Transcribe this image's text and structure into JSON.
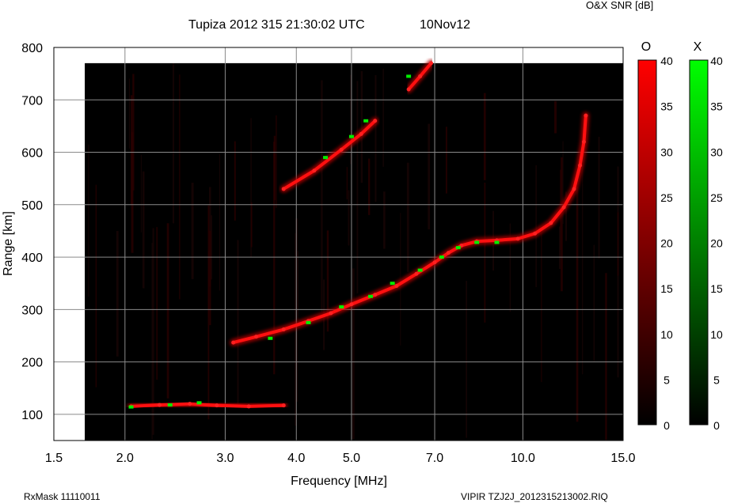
{
  "header": {
    "title": "Tupiza 2012 315 21:30:02 UTC",
    "date": "10Nov12",
    "snr_label": "O&X SNR [dB]"
  },
  "footer": {
    "left": "RxMask 11110011",
    "right": "VIPIR  TZJ2J_2012315213002.RIQ"
  },
  "colors": {
    "background": "#000000",
    "o_trace": "#ff0000",
    "x_trace": "#00ff00",
    "grid": "#808080"
  },
  "chart_data": {
    "type": "scatter",
    "xlabel": "Frequency [MHz]",
    "ylabel": "Range [km]",
    "xscale": "log",
    "xlim": [
      1.5,
      15.0
    ],
    "ylim": [
      50,
      800
    ],
    "x_ticks": [
      "1.5",
      "2.0",
      "3.0",
      "4.0",
      "5.0",
      "7.0",
      "10.0",
      "15.0"
    ],
    "x_tick_values": [
      1.5,
      2.0,
      3.0,
      4.0,
      5.0,
      7.0,
      10.0,
      15.0
    ],
    "y_ticks": [
      "100",
      "200",
      "300",
      "400",
      "500",
      "600",
      "700",
      "800"
    ],
    "y_tick_values": [
      100,
      200,
      300,
      400,
      500,
      600,
      700,
      800
    ],
    "grid": true,
    "frequency_start_mhz": 1.7,
    "range_top_km": 770,
    "series": [
      {
        "name": "O",
        "points": [
          [
            2.05,
            115
          ],
          [
            2.3,
            118
          ],
          [
            2.6,
            120
          ],
          [
            2.9,
            117
          ],
          [
            3.3,
            115
          ],
          [
            3.8,
            117
          ],
          [
            3.1,
            237
          ],
          [
            3.4,
            248
          ],
          [
            3.8,
            262
          ],
          [
            4.2,
            278
          ],
          [
            4.6,
            293
          ],
          [
            5.0,
            310
          ],
          [
            5.5,
            328
          ],
          [
            6.0,
            345
          ],
          [
            6.5,
            368
          ],
          [
            7.0,
            390
          ],
          [
            7.4,
            408
          ],
          [
            7.8,
            422
          ],
          [
            8.3,
            430
          ],
          [
            9.0,
            432
          ],
          [
            9.8,
            435
          ],
          [
            10.5,
            445
          ],
          [
            11.2,
            465
          ],
          [
            11.8,
            495
          ],
          [
            12.3,
            530
          ],
          [
            12.6,
            575
          ],
          [
            12.8,
            620
          ],
          [
            12.9,
            670
          ],
          [
            3.8,
            530
          ],
          [
            4.3,
            565
          ],
          [
            4.8,
            605
          ],
          [
            5.2,
            635
          ],
          [
            5.5,
            660
          ],
          [
            6.3,
            720
          ],
          [
            6.6,
            745
          ],
          [
            6.9,
            770
          ]
        ]
      },
      {
        "name": "X",
        "points": [
          [
            2.05,
            114
          ],
          [
            2.4,
            118
          ],
          [
            2.7,
            122
          ],
          [
            3.6,
            245
          ],
          [
            4.2,
            275
          ],
          [
            4.8,
            305
          ],
          [
            5.4,
            325
          ],
          [
            5.9,
            350
          ],
          [
            6.6,
            375
          ],
          [
            7.2,
            400
          ],
          [
            7.7,
            418
          ],
          [
            8.3,
            428
          ],
          [
            9.0,
            428
          ],
          [
            4.5,
            590
          ],
          [
            5.0,
            630
          ],
          [
            5.3,
            660
          ],
          [
            6.3,
            745
          ]
        ]
      }
    ],
    "colorbars": [
      {
        "name": "O",
        "ticks": [
          "0",
          "5",
          "10",
          "15",
          "20",
          "25",
          "30",
          "35",
          "40"
        ],
        "tick_values": [
          0,
          5,
          10,
          15,
          20,
          25,
          30,
          35,
          40
        ],
        "range": [
          0,
          40
        ],
        "color": "#ff0000"
      },
      {
        "name": "X",
        "ticks": [
          "0",
          "5",
          "10",
          "15",
          "20",
          "25",
          "30",
          "35",
          "40"
        ],
        "tick_values": [
          0,
          5,
          10,
          15,
          20,
          25,
          30,
          35,
          40
        ],
        "range": [
          0,
          40
        ],
        "color": "#00ff00"
      }
    ]
  }
}
